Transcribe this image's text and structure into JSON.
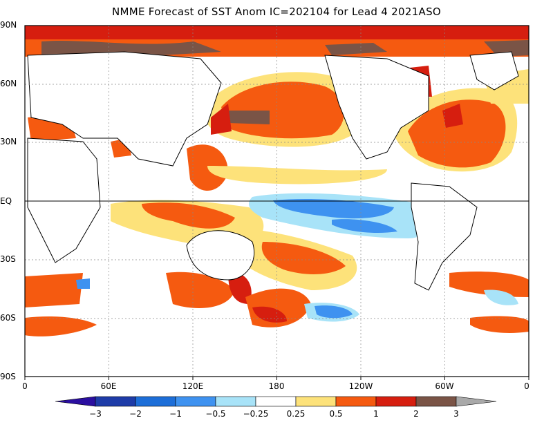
{
  "title": "NMME Forecast of SST Anom IC=202104 for Lead 4 2021ASO",
  "lat_ticks": [
    "90N",
    "60N",
    "30N",
    "EQ",
    "30S",
    "60S",
    "90S"
  ],
  "lon_ticks": [
    "0",
    "60E",
    "120E",
    "180",
    "120W",
    "60W",
    "0"
  ],
  "colorbar": {
    "labels": [
      "−3",
      "−2",
      "−1",
      "−0.5",
      "−0.25",
      "0.25",
      "0.5",
      "1",
      "2",
      "3"
    ],
    "colors": [
      "#1e3ca8",
      "#1d6ed8",
      "#3e92f0",
      "#a8e3f8",
      "#ffffff",
      "#fde27a",
      "#f55a10",
      "#d61e0f",
      "#7a5446",
      "#a9a9a9"
    ],
    "extend_low": "#2b0fa0",
    "extend_high": "#a9a9a9"
  },
  "palette": {
    "light_yellow": "#fde27a",
    "orange": "#f55a10",
    "red": "#d61e0f",
    "brown": "#7a5446",
    "light_blue": "#a8e3f8",
    "mid_blue": "#3e92f0",
    "dark_blue": "#1d6ed8"
  }
}
